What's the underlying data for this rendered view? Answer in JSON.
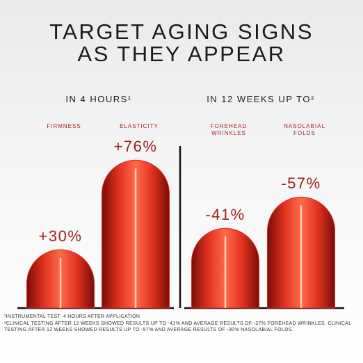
{
  "header": {
    "title": [
      "TARGET AGING SIGNS",
      "AS THEY APPEAR"
    ]
  },
  "chart_data": [
    {
      "type": "bar",
      "subtitle": "IN 4 HOURS¹",
      "categories": [
        "FIRMNESS",
        "ELASTICITY"
      ],
      "values": [
        30,
        76
      ],
      "value_labels": [
        "+30%",
        "+76%"
      ],
      "color": "#d92b1c"
    },
    {
      "type": "bar",
      "subtitle": "IN 12 WEEKS UP TO²",
      "categories": [
        "FOREHEAD WRINKLES",
        "NASOLABIAL FOLDS"
      ],
      "values": [
        -41,
        -57
      ],
      "value_labels": [
        "-41%",
        "-57%"
      ],
      "color": "#d92b1c"
    }
  ],
  "footnotes": [
    "¹INSTRUMENTAL TEST. 4 HOURS AFTER APPLICATION",
    "²CLINICAL TESTING AFTER 12 WEEKS SHOWED RESULTS UP TO -41% AND AVERAGE RESULTS OF -27% FOREHEAD WRINKLES. CLINICAL TESTING AFTER 12 WEEKS SHOWED RESULTS UP TO -57% AND AVERAGE RESULTS OF -30% NASOLABIAL FOLDS."
  ]
}
